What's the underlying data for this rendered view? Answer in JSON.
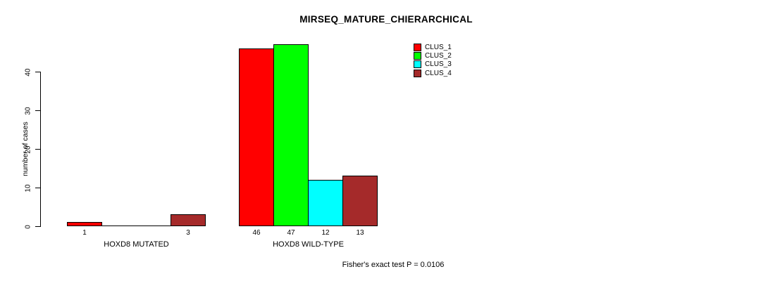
{
  "page": {
    "background_color": "#ffffff",
    "text_color": "#000000"
  },
  "chart_data": {
    "type": "bar",
    "title": "MIRSEQ_MATURE_CHIERARCHICAL",
    "xlabel": "",
    "ylabel": "number of cases",
    "categories": [
      "HOXD8 MUTATED",
      "HOXD8 WILD-TYPE"
    ],
    "series": [
      {
        "name": "CLUS_1",
        "color": "#FF0000",
        "values": [
          1,
          46
        ]
      },
      {
        "name": "CLUS_2",
        "color": "#00FF00",
        "values": [
          0,
          47
        ]
      },
      {
        "name": "CLUS_3",
        "color": "#00FFFF",
        "values": [
          0,
          12
        ]
      },
      {
        "name": "CLUS_4",
        "color": "#A52A2A",
        "values": [
          3,
          13
        ]
      }
    ],
    "visible_bar_value_labels": [
      "1",
      "3",
      "46",
      "47",
      "12",
      "13"
    ],
    "yticks": [
      0,
      10,
      20,
      30,
      40
    ],
    "ylim": [
      0,
      47
    ],
    "grid": false,
    "legend_position": "top-right",
    "legend_entries": [
      "CLUS_1",
      "CLUS_2",
      "CLUS_3",
      "CLUS_4"
    ],
    "annotation": "Fisher's exact test P = 0.0106",
    "axis_color": "#000000",
    "bar_border_color": "#000000"
  }
}
